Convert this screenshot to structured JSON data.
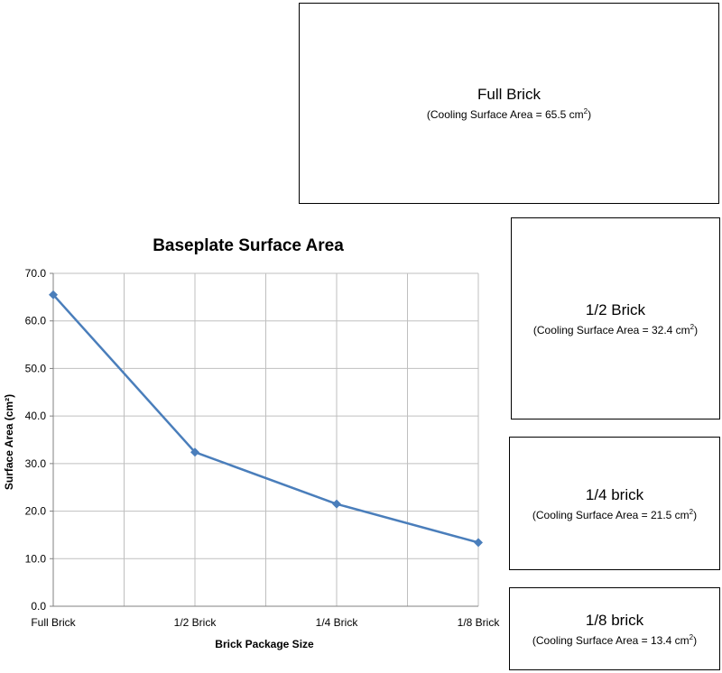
{
  "bricks": [
    {
      "name": "Full Brick",
      "area_label": "(Cooling Surface Area = 65.5 cm",
      "area_suffix": ")",
      "superscript": "2"
    },
    {
      "name": "1/2 Brick",
      "area_label": "(Cooling Surface Area = 32.4 cm",
      "area_suffix": ")",
      "superscript": "2"
    },
    {
      "name": "1/4 brick",
      "area_label": "(Cooling Surface Area = 21.5 cm",
      "area_suffix": ")",
      "superscript": "2"
    },
    {
      "name": "1/8 brick",
      "area_label": "(Cooling Surface Area = 13.4 cm",
      "area_suffix": ")",
      "superscript": "2"
    }
  ],
  "chart_data": {
    "type": "line",
    "title": "Baseplate Surface Area",
    "xlabel": "Brick Package Size",
    "ylabel": "Surface Area (cm²)",
    "categories": [
      "Full Brick",
      "1/2 Brick",
      "1/4 Brick",
      "1/8 Brick"
    ],
    "series": [
      {
        "values": [
          65.5,
          32.4,
          21.5,
          13.4
        ]
      }
    ],
    "ylim": [
      0,
      70
    ],
    "ytick_step": 10,
    "ytick_labels": [
      "0.0",
      "10.0",
      "20.0",
      "30.0",
      "40.0",
      "50.0",
      "60.0",
      "70.0"
    ],
    "grid": true,
    "legend": "none",
    "line_color": "#4A7EBB",
    "grid_color": "#BFBFBF"
  }
}
